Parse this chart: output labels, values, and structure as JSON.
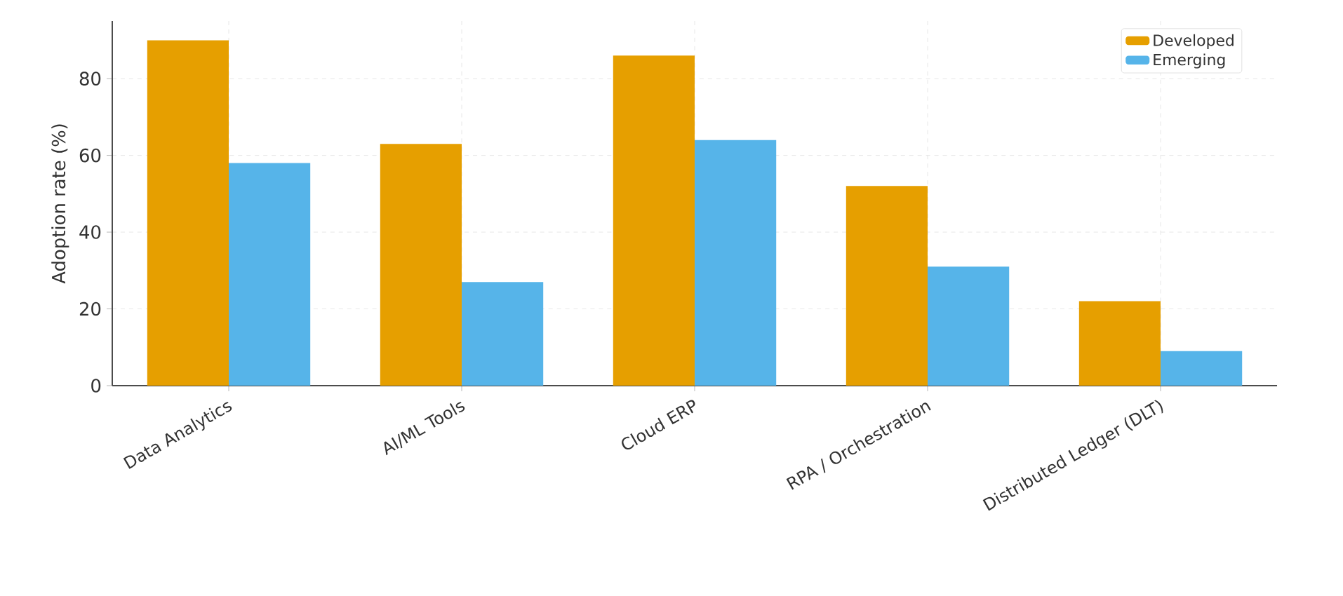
{
  "chart_data": {
    "type": "bar",
    "ylabel": "Adoption rate (%)",
    "categories": [
      "Data Analytics",
      "AI/ML Tools",
      "Cloud ERP",
      "RPA / Orchestration",
      "Distributed Ledger (DLT)"
    ],
    "series": [
      {
        "name": "Developed",
        "color": "#e69f00",
        "values": [
          90,
          63,
          86,
          52,
          22
        ]
      },
      {
        "name": "Emerging",
        "color": "#56b4e9",
        "values": [
          58,
          27,
          64,
          31,
          9
        ]
      }
    ],
    "ylim": [
      0,
      95
    ],
    "yticks": [
      0,
      20,
      40,
      60,
      80
    ],
    "grid": true,
    "legend": "top right"
  }
}
